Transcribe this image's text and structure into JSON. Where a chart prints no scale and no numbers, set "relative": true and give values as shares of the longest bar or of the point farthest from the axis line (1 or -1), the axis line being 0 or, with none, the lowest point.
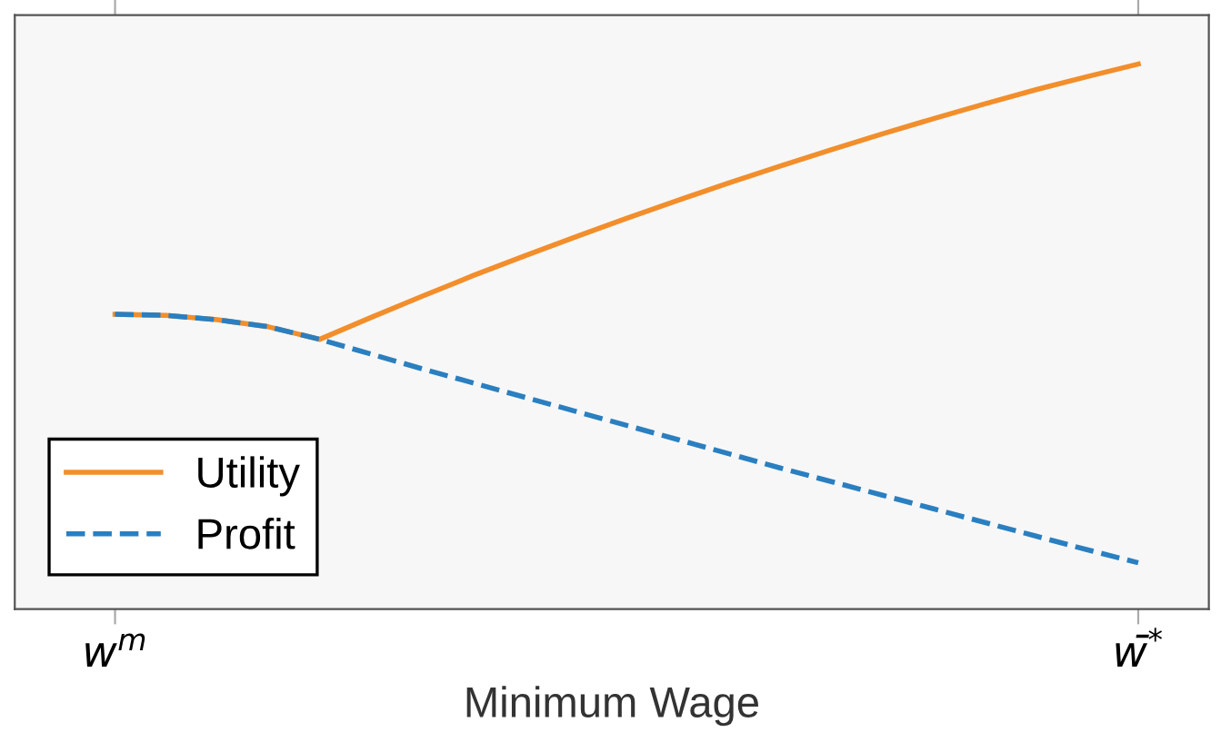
{
  "chart_data": {
    "type": "line",
    "relative": true,
    "xlabel": "Minimum Wage",
    "categories": [
      "w$^{m}$",
      null,
      null,
      null,
      null,
      null,
      null,
      null,
      null,
      null,
      null,
      null,
      null,
      null,
      null,
      null,
      null,
      null,
      null,
      null,
      "w̄$^{*}$"
    ],
    "legend": "bottom left",
    "grid": false,
    "series": [
      {
        "name": "Utility",
        "color": "#f28e2b",
        "line_style": "solid",
        "values": [
          0.541,
          0.539,
          0.531,
          0.518,
          0.495,
          0.535,
          0.574,
          0.612,
          0.648,
          0.683,
          0.717,
          0.75,
          0.782,
          0.813,
          0.843,
          0.872,
          0.9,
          0.927,
          0.953,
          0.977,
          1.0
        ]
      },
      {
        "name": "Profit",
        "color": "#2a7fc0",
        "line_style": "dashed",
        "values": [
          0.541,
          0.539,
          0.531,
          0.518,
          0.495,
          0.468,
          0.441,
          0.415,
          0.389,
          0.363,
          0.337,
          0.311,
          0.285,
          0.259,
          0.234,
          0.209,
          0.184,
          0.159,
          0.134,
          0.109,
          0.085
        ]
      }
    ]
  }
}
